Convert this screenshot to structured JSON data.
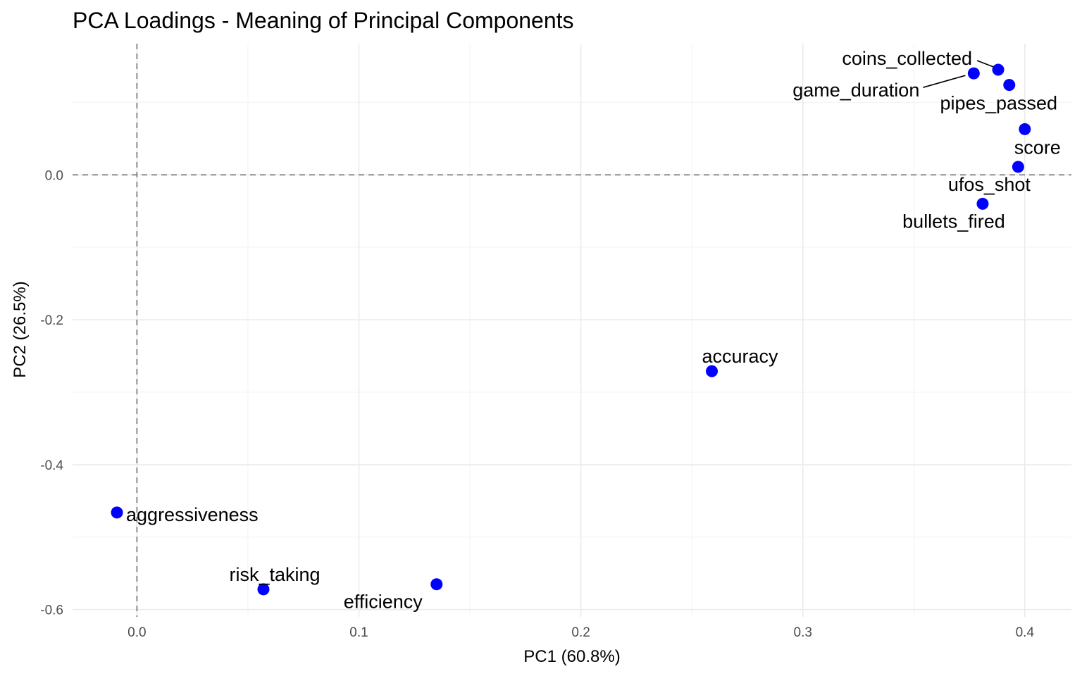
{
  "chart_data": {
    "type": "scatter",
    "title": "PCA Loadings - Meaning of Principal Components",
    "xlabel": "PC1 (60.8%)",
    "ylabel": "PC2 (26.5%)",
    "xlim": [
      -0.029,
      0.421
    ],
    "ylim": [
      -0.61,
      0.181
    ],
    "x_ticks": [
      0.0,
      0.1,
      0.2,
      0.3,
      0.4
    ],
    "x_tick_labels": [
      "0.0",
      "0.1",
      "0.2",
      "0.3",
      "0.4"
    ],
    "y_ticks": [
      0.0,
      -0.2,
      -0.4,
      -0.6
    ],
    "y_tick_labels": [
      "0.0",
      "-0.2",
      "-0.4",
      "-0.6"
    ],
    "grid": true,
    "reference_lines": {
      "x": 0,
      "y": 0,
      "style": "dashed"
    },
    "point_color": "#0000ff",
    "points": [
      {
        "label": "coins_collected",
        "x": 0.388,
        "y": 0.145
      },
      {
        "label": "game_duration",
        "x": 0.377,
        "y": 0.14
      },
      {
        "label": "pipes_passed",
        "x": 0.393,
        "y": 0.124
      },
      {
        "label": "score",
        "x": 0.4,
        "y": 0.063
      },
      {
        "label": "ufos_shot",
        "x": 0.397,
        "y": 0.011
      },
      {
        "label": "bullets_fired",
        "x": 0.381,
        "y": -0.04
      },
      {
        "label": "accuracy",
        "x": 0.259,
        "y": -0.271
      },
      {
        "label": "aggressiveness",
        "x": -0.009,
        "y": -0.466
      },
      {
        "label": "risk_taking",
        "x": 0.057,
        "y": -0.572
      },
      {
        "label": "efficiency",
        "x": 0.135,
        "y": -0.565
      }
    ]
  }
}
